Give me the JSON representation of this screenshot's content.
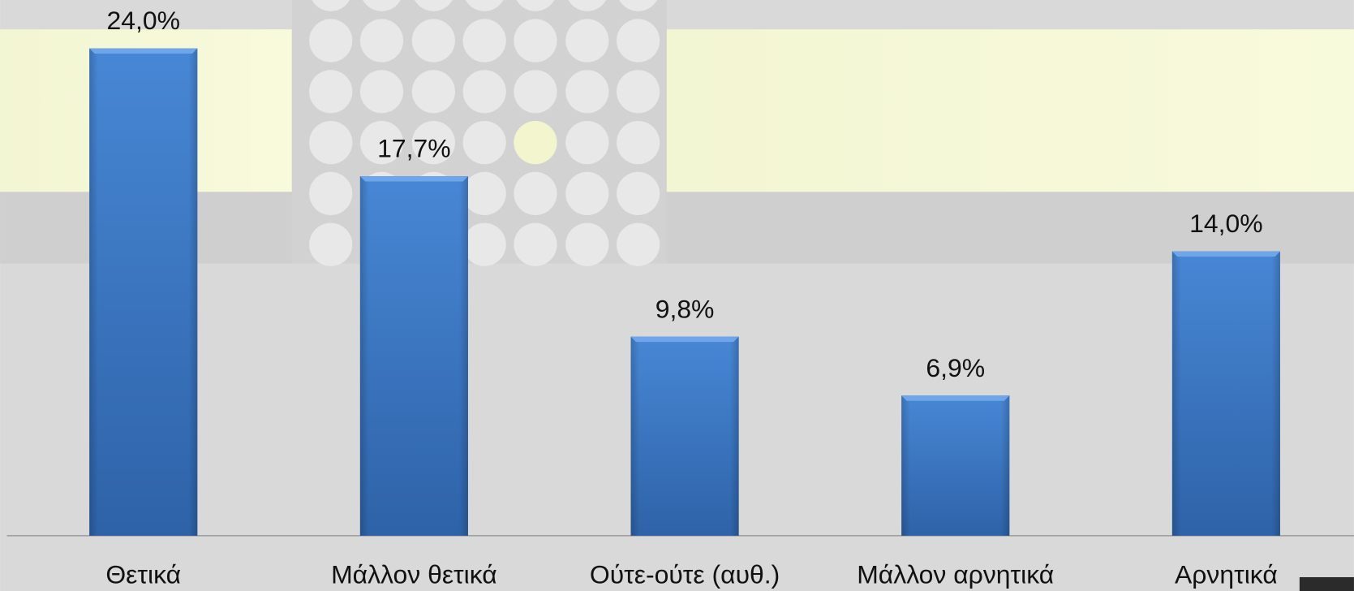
{
  "chart_data": {
    "type": "bar",
    "categories": [
      "Θετικά",
      "Μάλλον θετικά",
      "Ούτε-ούτε (αυθ.)",
      "Μάλλον αρνητικά",
      "Αρνητικά"
    ],
    "values": [
      24.0,
      17.7,
      9.8,
      6.9,
      14.0
    ],
    "value_labels": [
      "24,0%",
      "17,7%",
      "9,8%",
      "6,9%",
      "14,0%"
    ],
    "color": "#3a76c4",
    "ylim": [
      0,
      24
    ]
  }
}
